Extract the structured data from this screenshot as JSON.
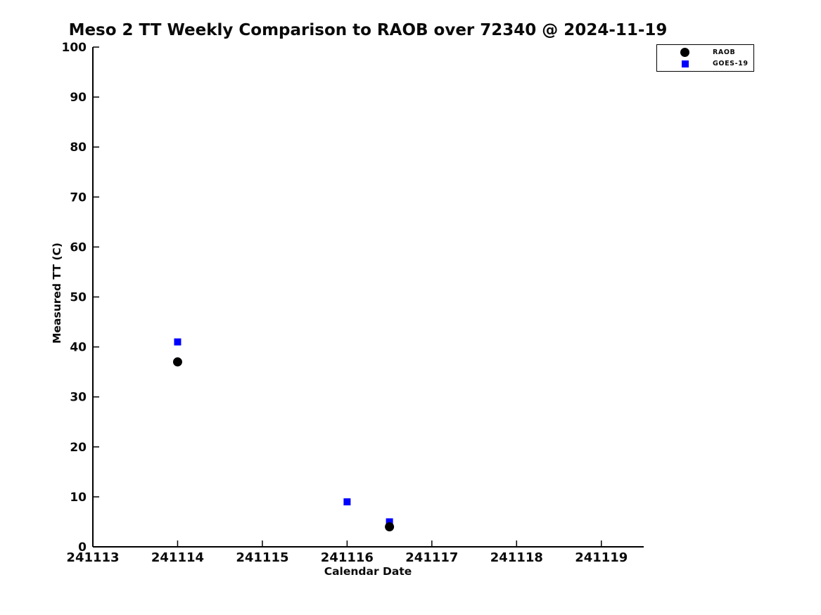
{
  "page": {
    "background_color": "#ffffff"
  },
  "chart_data": {
    "type": "scatter",
    "title": "Meso 2 TT Weekly Comparison to RAOB over 72340 @ 2024-11-19",
    "xlabel": "Calendar Date",
    "ylabel": "Measured TT (C)",
    "xlim": [
      241113,
      241119.5
    ],
    "ylim": [
      0,
      100
    ],
    "x_ticks": [
      241113,
      241114,
      241115,
      241116,
      241117,
      241118,
      241119
    ],
    "y_ticks": [
      0,
      10,
      20,
      30,
      40,
      50,
      60,
      70,
      80,
      90,
      100
    ],
    "grid": false,
    "legend_position": "top-right",
    "axis_color": "#000000",
    "series": [
      {
        "name": "RAOB",
        "marker": "circle",
        "color": "#000000",
        "points": [
          [
            241114,
            37
          ],
          [
            241116.5,
            4
          ]
        ]
      },
      {
        "name": "GOES-19",
        "marker": "square",
        "color": "#0000ff",
        "points": [
          [
            241114,
            41
          ],
          [
            241116,
            9
          ],
          [
            241116.5,
            5
          ]
        ]
      }
    ]
  }
}
